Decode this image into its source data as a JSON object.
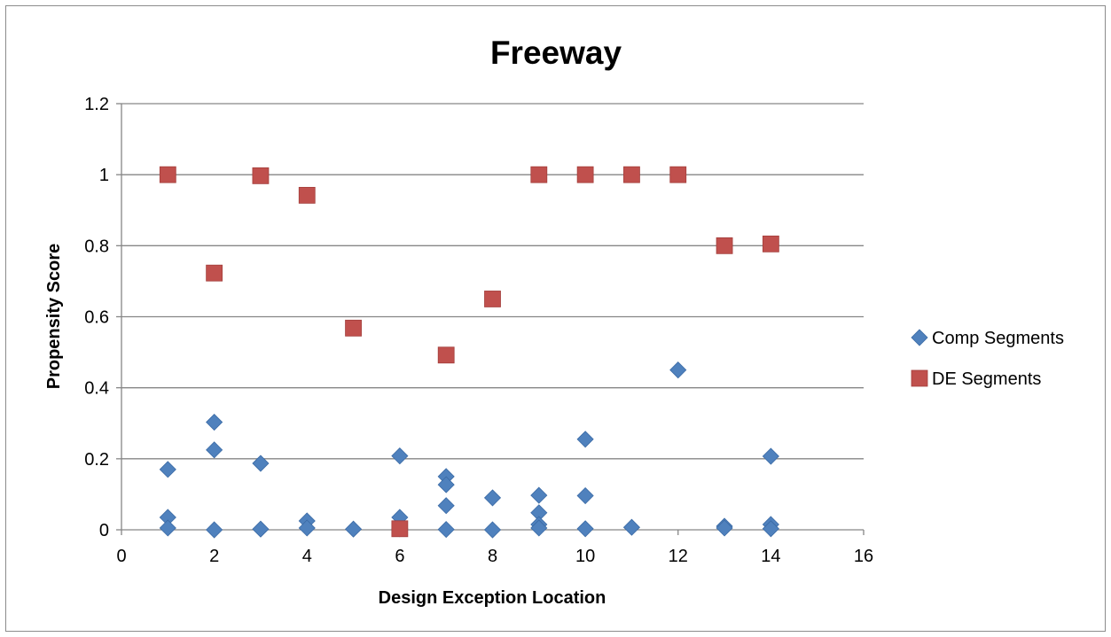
{
  "chart_data": {
    "type": "scatter",
    "title": "Freeway",
    "xlabel": "Design Exception Location",
    "ylabel": "Propensity Score",
    "xlim": [
      0,
      16
    ],
    "ylim": [
      0,
      1.2
    ],
    "x_ticks": [
      "0",
      "2",
      "4",
      "6",
      "8",
      "10",
      "12",
      "14",
      "16"
    ],
    "y_ticks": [
      "0",
      "0.2",
      "0.4",
      "0.6",
      "0.8",
      "1",
      "1.2"
    ],
    "grid": "horizontal",
    "legend_position": "right",
    "series": [
      {
        "name": "Comp Segments",
        "marker": "diamond",
        "color": "#4f81bd",
        "points": [
          [
            1,
            0.17
          ],
          [
            1,
            0.035
          ],
          [
            1,
            0.005
          ],
          [
            2,
            0.303
          ],
          [
            2,
            0.225
          ],
          [
            2,
            0.0
          ],
          [
            3,
            0.187
          ],
          [
            3,
            0.002
          ],
          [
            4,
            0.025
          ],
          [
            4,
            0.005
          ],
          [
            5,
            0.002
          ],
          [
            6,
            0.208
          ],
          [
            6,
            0.035
          ],
          [
            6,
            0.003
          ],
          [
            7,
            0.15
          ],
          [
            7,
            0.127
          ],
          [
            7,
            0.068
          ],
          [
            7,
            0.001
          ],
          [
            8,
            0.09
          ],
          [
            8,
            0.0
          ],
          [
            9,
            0.097
          ],
          [
            9,
            0.048
          ],
          [
            9,
            0.015
          ],
          [
            9,
            0.005
          ],
          [
            10,
            0.255
          ],
          [
            10,
            0.096
          ],
          [
            10,
            0.003
          ],
          [
            11,
            0.007
          ],
          [
            12,
            0.45
          ],
          [
            13,
            0.01
          ],
          [
            13,
            0.005
          ],
          [
            14,
            0.207
          ],
          [
            14,
            0.015
          ],
          [
            14,
            0.003
          ]
        ]
      },
      {
        "name": "DE Segments",
        "marker": "square",
        "color": "#c0504d",
        "points": [
          [
            1,
            1.0
          ],
          [
            2,
            0.723
          ],
          [
            3,
            0.997
          ],
          [
            4,
            0.942
          ],
          [
            5,
            0.568
          ],
          [
            6,
            0.003
          ],
          [
            7,
            0.492
          ],
          [
            8,
            0.65
          ],
          [
            9,
            1.0
          ],
          [
            10,
            1.0
          ],
          [
            11,
            1.0
          ],
          [
            12,
            1.0
          ],
          [
            13,
            0.8
          ],
          [
            14,
            0.805
          ]
        ]
      }
    ]
  }
}
